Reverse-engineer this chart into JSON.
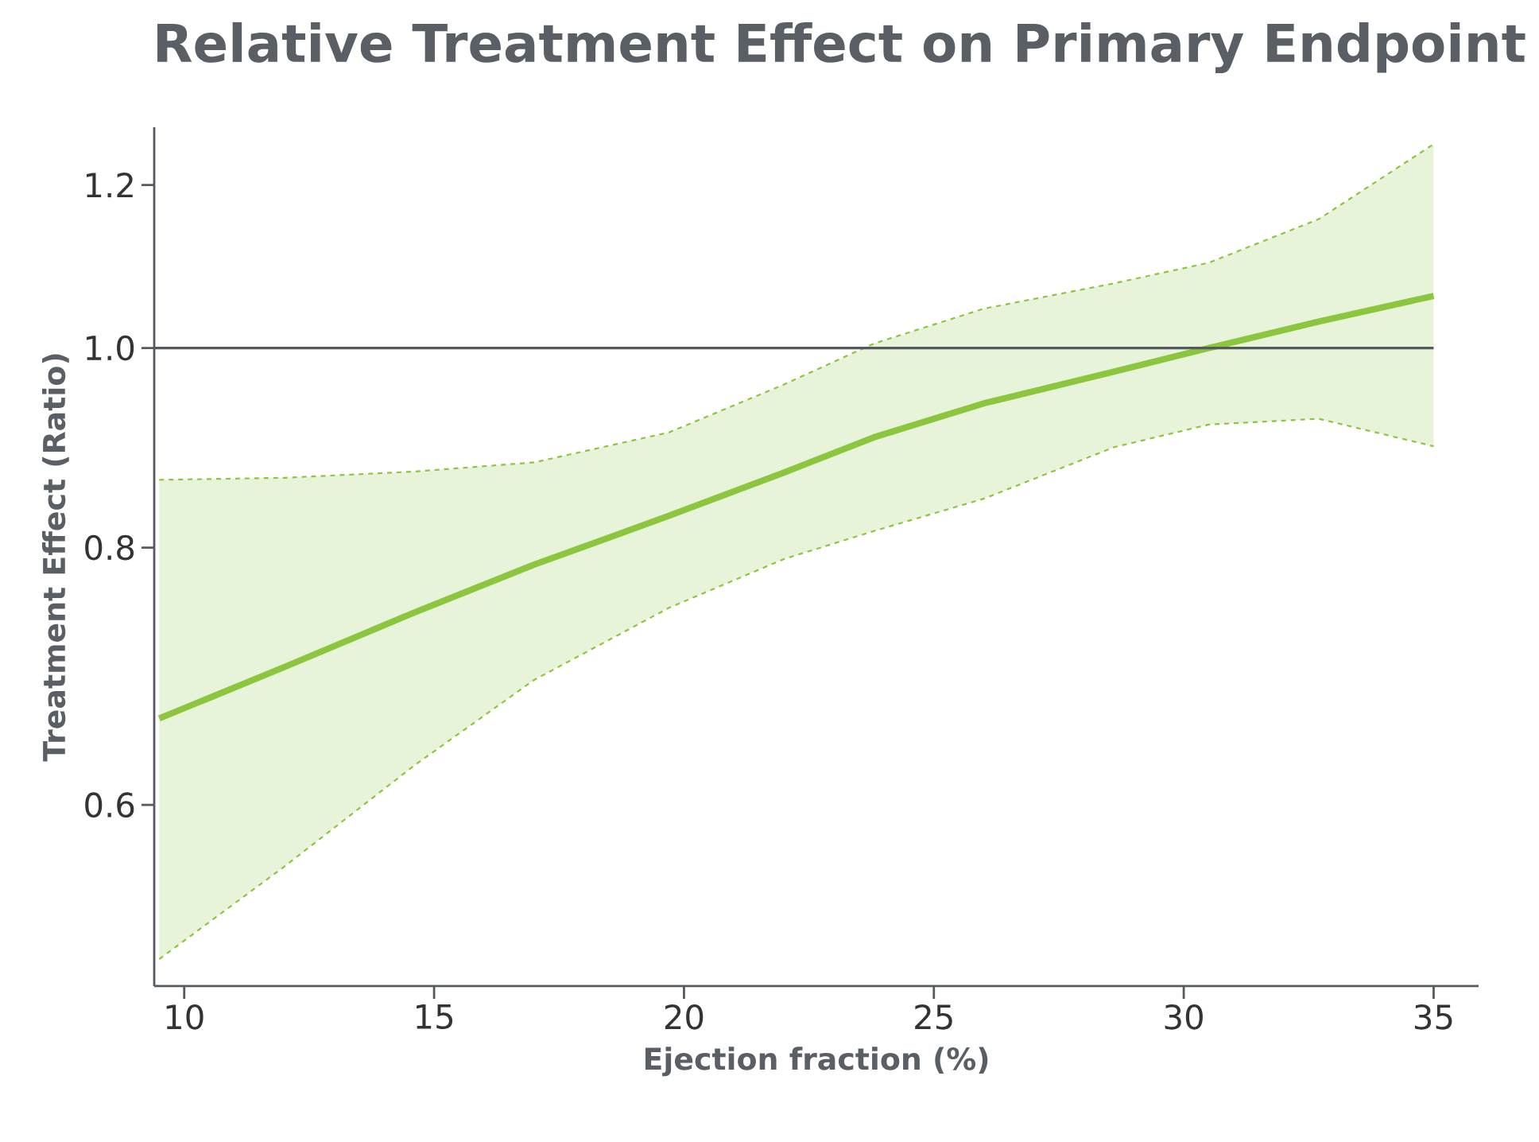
{
  "chart_data": {
    "type": "line",
    "title": "Relative Treatment Effect on Primary Endpoint",
    "xlabel": "Ejection fraction (%)",
    "ylabel": "Treatment Effect (Ratio)",
    "x": [
      9.5,
      12,
      14.6,
      17,
      19.7,
      22,
      23.8,
      26,
      28.6,
      30.5,
      32.7,
      35
    ],
    "series": [
      {
        "color": "#8cc63f",
        "values": [
          0.661,
          0.7,
          0.744,
          0.785,
          0.829,
          0.87,
          0.905,
          0.94,
          0.974,
          1.0,
          1.03,
          1.06
        ],
        "lower": [
          0.505,
          0.56,
          0.627,
          0.69,
          0.748,
          0.79,
          0.815,
          0.845,
          0.895,
          0.918,
          0.924,
          0.896
        ],
        "upper": [
          0.863,
          0.865,
          0.871,
          0.88,
          0.91,
          0.96,
          1.005,
          1.045,
          1.075,
          1.1,
          1.155,
          1.256
        ]
      },
      {
        "color": "#8cc63f",
        "line_style": "dashed",
        "values": [
          0.863,
          0.865,
          0.871,
          0.88,
          0.91,
          0.96,
          1.005,
          1.045,
          1.075,
          1.1,
          1.155,
          1.256
        ]
      },
      {
        "color": "#8cc63f",
        "line_style": "dashed",
        "values": [
          0.505,
          0.56,
          0.627,
          0.69,
          0.748,
          0.79,
          0.815,
          0.845,
          0.895,
          0.918,
          0.924,
          0.896
        ]
      }
    ],
    "xlim": [
      9.4,
      35.9
    ],
    "ylim": [
      0.49,
      1.28
    ],
    "xticks": [
      10,
      15,
      20,
      25,
      30,
      35
    ],
    "yticks": [
      0.6,
      0.8,
      {
        "value": 1.0,
        "label": "1.0"
      },
      1.2
    ],
    "log": "y",
    "ref_lines": [
      {
        "axis": "y",
        "value": 1.0,
        "color": "#555a60"
      }
    ]
  }
}
